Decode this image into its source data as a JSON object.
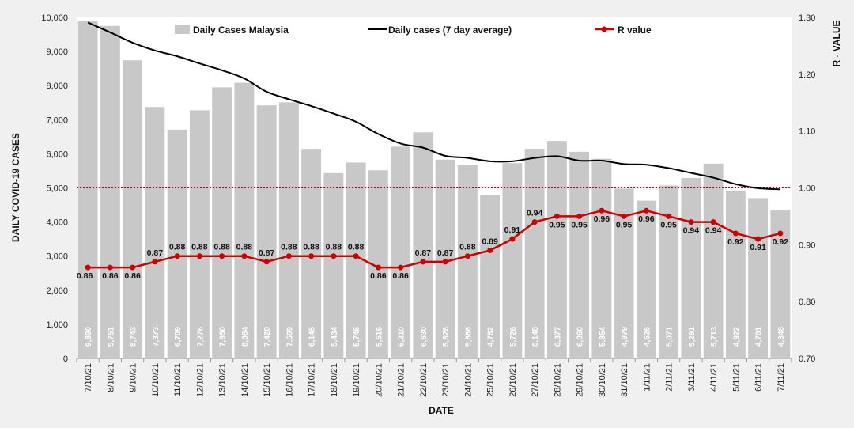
{
  "chart_data": {
    "type": "bar",
    "title": "",
    "xlabel": "DATE",
    "ylabel": "DAILY COVID-19 CASES",
    "y2label": "R - VALUE",
    "ylim": [
      0,
      10000
    ],
    "y2lim": [
      0.7,
      1.3
    ],
    "yticks": [
      "0",
      "1,000",
      "2,000",
      "3,000",
      "4,000",
      "5,000",
      "6,000",
      "7,000",
      "8,000",
      "9,000",
      "10,000"
    ],
    "y2ticks": [
      "0.70",
      "0.80",
      "0.90",
      "1.00",
      "1.10",
      "1.20",
      "1.30"
    ],
    "reference_line": 1.0,
    "legend_position": "top",
    "categories": [
      "7/10/21",
      "8/10/21",
      "9/10/21",
      "10/10/21",
      "11/10/21",
      "12/10/21",
      "13/10/21",
      "14/10/21",
      "15/10/21",
      "16/10/21",
      "17/10/21",
      "18/10/21",
      "19/10/21",
      "20/10/21",
      "21/10/21",
      "22/10/21",
      "23/10/21",
      "24/10/21",
      "25/10/21",
      "26/10/21",
      "27/10/21",
      "28/10/21",
      "29/10/21",
      "30/10/21",
      "31/10/21",
      "1/11/21",
      "2/11/21",
      "3/11/21",
      "4/11/21",
      "5/11/21",
      "6/11/21",
      "7/11/21"
    ],
    "series": [
      {
        "name": "Daily Cases Malaysia",
        "type": "bar",
        "axis": "left",
        "color": "#c8c8c8",
        "values": [
          9890,
          9751,
          8743,
          7373,
          6709,
          7276,
          7950,
          8084,
          7420,
          7509,
          6145,
          5434,
          5745,
          5516,
          6210,
          6630,
          5828,
          5666,
          4782,
          5726,
          6148,
          6377,
          6060,
          5854,
          4979,
          4626,
          5071,
          5291,
          5713,
          4922,
          4701,
          4348
        ],
        "labels": [
          "9,890",
          "9,751",
          "8,743",
          "7,373",
          "6,709",
          "7,276",
          "7,950",
          "8,084",
          "7,420",
          "7,509",
          "6,145",
          "5,434",
          "5,745",
          "5,516",
          "6,210",
          "6,630",
          "5,828",
          "5,666",
          "4,782",
          "5,726",
          "6,148",
          "6,377",
          "6,060",
          "5,854",
          "4,979",
          "4,626",
          "5,071",
          "5,291",
          "5,713",
          "4,922",
          "4,701",
          "4,348"
        ]
      },
      {
        "name": "Daily cases (7 day average)",
        "type": "line",
        "axis": "left",
        "color": "#000000",
        "values": [
          9850,
          9560,
          9260,
          9030,
          8860,
          8650,
          8450,
          8210,
          7820,
          7600,
          7400,
          7180,
          6940,
          6580,
          6300,
          6180,
          5940,
          5880,
          5780,
          5780,
          5880,
          5930,
          5800,
          5800,
          5700,
          5680,
          5580,
          5440,
          5300,
          5110,
          4990,
          4960
        ]
      },
      {
        "name": "R value",
        "type": "line",
        "axis": "right",
        "color": "#cc0000",
        "values": [
          0.86,
          0.86,
          0.86,
          0.87,
          0.88,
          0.88,
          0.88,
          0.88,
          0.87,
          0.88,
          0.88,
          0.88,
          0.88,
          0.86,
          0.86,
          0.87,
          0.87,
          0.88,
          0.89,
          0.91,
          0.94,
          0.95,
          0.95,
          0.96,
          0.95,
          0.96,
          0.95,
          0.94,
          0.94,
          0.92,
          0.91,
          0.92
        ],
        "labels": [
          "0.86",
          "0.86",
          "0.86",
          "0.87",
          "0.88",
          "0.88",
          "0.88",
          "0.88",
          "0.87",
          "0.88",
          "0.88",
          "0.88",
          "0.88",
          "0.86",
          "0.86",
          "0.87",
          "0.87",
          "0.88",
          "0.89",
          "0.91",
          "0.94",
          "0.95",
          "0.95",
          "0.96",
          "0.95",
          "0.96",
          "0.95",
          "0.94",
          "0.94",
          "0.92",
          "0.91",
          "0.92"
        ]
      }
    ]
  }
}
